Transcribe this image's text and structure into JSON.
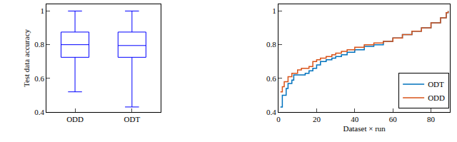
{
  "chart_data": [
    {
      "type": "box",
      "y_label": "Test data accuracy",
      "categories": [
        "ODD",
        "ODT"
      ],
      "lower_whisker": [
        0.52,
        0.43
      ],
      "q1": [
        0.725,
        0.725
      ],
      "median": [
        0.8,
        0.795
      ],
      "q3": [
        0.875,
        0.875
      ],
      "upper_whisker": [
        1.0,
        1.0
      ],
      "color": "#0000ff",
      "ylim": [
        0.4,
        1.04
      ],
      "yticks": [
        0.4,
        0.6,
        0.8,
        1
      ],
      "grid": false
    },
    {
      "type": "line",
      "line_style": "step",
      "x_label": "Dataset × run",
      "x": [
        1,
        2,
        3,
        4,
        5,
        6,
        7,
        8,
        10,
        12,
        14,
        16,
        18,
        20,
        22,
        25,
        28,
        30,
        33,
        36,
        40,
        45,
        50,
        55,
        60,
        65,
        70,
        75,
        80,
        85,
        88,
        89
      ],
      "series": [
        {
          "name": "ODT",
          "color": "#0072bd",
          "values": [
            0.43,
            0.5,
            0.5,
            0.54,
            0.57,
            0.57,
            0.59,
            0.62,
            0.62,
            0.62,
            0.63,
            0.645,
            0.66,
            0.68,
            0.7,
            0.71,
            0.72,
            0.73,
            0.74,
            0.755,
            0.77,
            0.79,
            0.8,
            0.82,
            0.84,
            0.86,
            0.88,
            0.9,
            0.93,
            0.96,
            0.99,
            1.0
          ]
        },
        {
          "name": "ODD",
          "color": "#d95319",
          "values": [
            0.52,
            0.55,
            0.58,
            0.58,
            0.61,
            0.61,
            0.63,
            0.63,
            0.65,
            0.66,
            0.66,
            0.67,
            0.7,
            0.71,
            0.72,
            0.73,
            0.74,
            0.75,
            0.76,
            0.77,
            0.785,
            0.8,
            0.81,
            0.82,
            0.84,
            0.86,
            0.88,
            0.9,
            0.93,
            0.96,
            0.99,
            1.0
          ]
        }
      ],
      "xlim": [
        0,
        90
      ],
      "xticks": [
        0,
        20,
        40,
        60,
        80
      ],
      "ylim": [
        0.4,
        1.04
      ],
      "yticks": [
        0.4,
        0.6,
        0.8,
        1
      ],
      "legend": "lower right",
      "grid": false
    }
  ]
}
